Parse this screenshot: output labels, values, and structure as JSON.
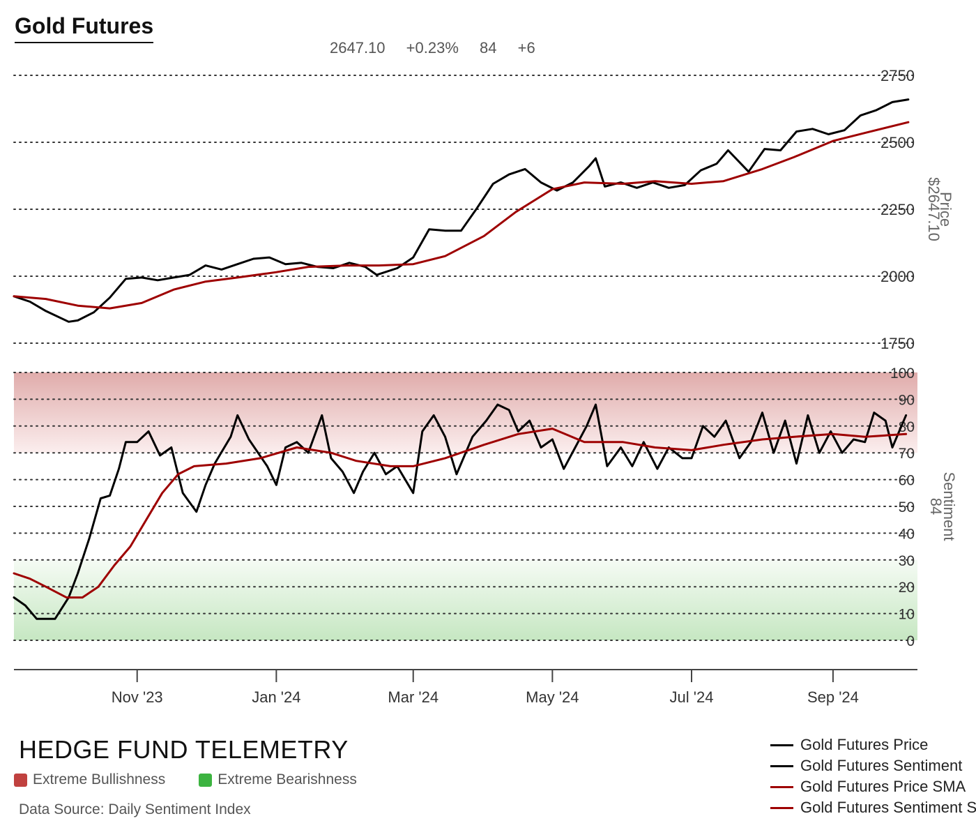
{
  "title": "Gold Futures",
  "stats": {
    "price": "2647.10",
    "change": "+0.23%",
    "sentiment": "84",
    "sentiment_change": "+6"
  },
  "brand": "HEDGE FUND TELEMETRY",
  "zones": [
    {
      "label": "Extreme Bullishness",
      "color": "#c0413f"
    },
    {
      "label": "Extreme Bearishness",
      "color": "#3cb340"
    }
  ],
  "source": "Data Source: Daily Sentiment Index",
  "legend": [
    {
      "label": "Gold Futures Price",
      "color": "#000000"
    },
    {
      "label": "Gold Futures Sentiment",
      "color": "#000000"
    },
    {
      "label": "Gold Futures Price SMA",
      "color": "#9e0000"
    },
    {
      "label": "Gold Futures Sentiment SMA",
      "color": "#9e0000"
    }
  ],
  "colors": {
    "line": "#000000",
    "sma": "#9e0000",
    "grid": "#333333"
  },
  "chart_data": [
    {
      "type": "line",
      "ylabel": "Price",
      "ylabel_value": "$2647.10",
      "ylim": [
        1750,
        2750
      ],
      "yticks": [
        1750,
        2000,
        2250,
        2500,
        2750
      ],
      "xlim": [
        "2023-09-08",
        "2024-10-08"
      ],
      "x_ticks": [
        {
          "date": "2023-11-01",
          "label": "Nov '23"
        },
        {
          "date": "2024-01-01",
          "label": "Jan '24"
        },
        {
          "date": "2024-03-01",
          "label": "Mar '24"
        },
        {
          "date": "2024-05-01",
          "label": "May '24"
        },
        {
          "date": "2024-07-01",
          "label": "Jul '24"
        },
        {
          "date": "2024-09-01",
          "label": "Sep '24"
        }
      ],
      "grid": true,
      "series": [
        {
          "name": "Gold Futures Price",
          "points": [
            [
              "2023-09-08",
              1925
            ],
            [
              "2023-09-15",
              1905
            ],
            [
              "2023-09-22",
              1870
            ],
            [
              "2023-10-02",
              1830
            ],
            [
              "2023-10-06",
              1835
            ],
            [
              "2023-10-13",
              1865
            ],
            [
              "2023-10-20",
              1920
            ],
            [
              "2023-10-27",
              1990
            ],
            [
              "2023-11-03",
              1995
            ],
            [
              "2023-11-10",
              1985
            ],
            [
              "2023-11-17",
              1995
            ],
            [
              "2023-11-24",
              2005
            ],
            [
              "2023-12-01",
              2040
            ],
            [
              "2023-12-08",
              2025
            ],
            [
              "2023-12-15",
              2045
            ],
            [
              "2023-12-22",
              2065
            ],
            [
              "2023-12-29",
              2070
            ],
            [
              "2024-01-05",
              2045
            ],
            [
              "2024-01-12",
              2050
            ],
            [
              "2024-01-19",
              2035
            ],
            [
              "2024-01-26",
              2030
            ],
            [
              "2024-02-02",
              2050
            ],
            [
              "2024-02-09",
              2035
            ],
            [
              "2024-02-14",
              2005
            ],
            [
              "2024-02-23",
              2030
            ],
            [
              "2024-03-01",
              2070
            ],
            [
              "2024-03-08",
              2175
            ],
            [
              "2024-03-15",
              2170
            ],
            [
              "2024-03-22",
              2170
            ],
            [
              "2024-03-29",
              2255
            ],
            [
              "2024-04-05",
              2345
            ],
            [
              "2024-04-12",
              2380
            ],
            [
              "2024-04-19",
              2400
            ],
            [
              "2024-04-26",
              2350
            ],
            [
              "2024-05-03",
              2320
            ],
            [
              "2024-05-10",
              2350
            ],
            [
              "2024-05-17",
              2410
            ],
            [
              "2024-05-20",
              2440
            ],
            [
              "2024-05-24",
              2335
            ],
            [
              "2024-05-31",
              2350
            ],
            [
              "2024-06-07",
              2330
            ],
            [
              "2024-06-14",
              2350
            ],
            [
              "2024-06-21",
              2330
            ],
            [
              "2024-06-28",
              2340
            ],
            [
              "2024-07-05",
              2395
            ],
            [
              "2024-07-12",
              2420
            ],
            [
              "2024-07-17",
              2470
            ],
            [
              "2024-07-26",
              2390
            ],
            [
              "2024-08-02",
              2475
            ],
            [
              "2024-08-09",
              2470
            ],
            [
              "2024-08-16",
              2540
            ],
            [
              "2024-08-23",
              2550
            ],
            [
              "2024-08-30",
              2530
            ],
            [
              "2024-09-06",
              2545
            ],
            [
              "2024-09-13",
              2600
            ],
            [
              "2024-09-20",
              2620
            ],
            [
              "2024-09-27",
              2650
            ],
            [
              "2024-10-04",
              2660
            ]
          ]
        },
        {
          "name": "Gold Futures Price SMA",
          "points": [
            [
              "2023-09-08",
              1925
            ],
            [
              "2023-09-22",
              1915
            ],
            [
              "2023-10-06",
              1890
            ],
            [
              "2023-10-20",
              1880
            ],
            [
              "2023-11-03",
              1900
            ],
            [
              "2023-11-17",
              1950
            ],
            [
              "2023-12-01",
              1980
            ],
            [
              "2023-12-15",
              1995
            ],
            [
              "2024-01-01",
              2015
            ],
            [
              "2024-01-15",
              2035
            ],
            [
              "2024-02-01",
              2040
            ],
            [
              "2024-02-15",
              2040
            ],
            [
              "2024-03-01",
              2045
            ],
            [
              "2024-03-15",
              2075
            ],
            [
              "2024-04-01",
              2150
            ],
            [
              "2024-04-15",
              2240
            ],
            [
              "2024-05-01",
              2325
            ],
            [
              "2024-05-15",
              2350
            ],
            [
              "2024-06-01",
              2345
            ],
            [
              "2024-06-15",
              2355
            ],
            [
              "2024-07-01",
              2345
            ],
            [
              "2024-07-15",
              2355
            ],
            [
              "2024-08-01",
              2400
            ],
            [
              "2024-08-15",
              2445
            ],
            [
              "2024-09-01",
              2505
            ],
            [
              "2024-09-15",
              2535
            ],
            [
              "2024-10-04",
              2575
            ]
          ]
        }
      ]
    },
    {
      "type": "line",
      "ylabel": "Sentiment",
      "ylabel_value": "84",
      "ylim": [
        0,
        100
      ],
      "yticks": [
        0,
        10,
        20,
        30,
        40,
        50,
        60,
        70,
        80,
        90,
        100
      ],
      "xlim": [
        "2023-09-08",
        "2024-10-08"
      ],
      "grid": true,
      "bands": [
        {
          "from": 70,
          "to": 100,
          "zone": "Extreme Bullishness"
        },
        {
          "from": 0,
          "to": 30,
          "zone": "Extreme Bearishness"
        }
      ],
      "series": [
        {
          "name": "Gold Futures Sentiment",
          "points": [
            [
              "2023-09-08",
              16
            ],
            [
              "2023-09-13",
              13
            ],
            [
              "2023-09-18",
              8
            ],
            [
              "2023-09-26",
              8
            ],
            [
              "2023-10-02",
              16
            ],
            [
              "2023-10-06",
              25
            ],
            [
              "2023-10-11",
              38
            ],
            [
              "2023-10-16",
              53
            ],
            [
              "2023-10-20",
              54
            ],
            [
              "2023-10-24",
              64
            ],
            [
              "2023-10-27",
              74
            ],
            [
              "2023-11-01",
              74
            ],
            [
              "2023-11-06",
              78
            ],
            [
              "2023-11-11",
              69
            ],
            [
              "2023-11-16",
              72
            ],
            [
              "2023-11-21",
              55
            ],
            [
              "2023-11-27",
              48
            ],
            [
              "2023-12-01",
              58
            ],
            [
              "2023-12-05",
              66
            ],
            [
              "2023-12-12",
              76
            ],
            [
              "2023-12-15",
              84
            ],
            [
              "2023-12-20",
              75
            ],
            [
              "2023-12-28",
              65
            ],
            [
              "2024-01-01",
              58
            ],
            [
              "2024-01-05",
              72
            ],
            [
              "2024-01-10",
              74
            ],
            [
              "2024-01-15",
              70
            ],
            [
              "2024-01-21",
              84
            ],
            [
              "2024-01-25",
              68
            ],
            [
              "2024-01-30",
              63
            ],
            [
              "2024-02-04",
              55
            ],
            [
              "2024-02-08",
              63
            ],
            [
              "2024-02-13",
              70
            ],
            [
              "2024-02-18",
              62
            ],
            [
              "2024-02-23",
              65
            ],
            [
              "2024-03-01",
              55
            ],
            [
              "2024-03-05",
              78
            ],
            [
              "2024-03-10",
              84
            ],
            [
              "2024-03-15",
              76
            ],
            [
              "2024-03-20",
              62
            ],
            [
              "2024-03-27",
              76
            ],
            [
              "2024-04-02",
              82
            ],
            [
              "2024-04-07",
              88
            ],
            [
              "2024-04-12",
              86
            ],
            [
              "2024-04-16",
              78
            ],
            [
              "2024-04-21",
              82
            ],
            [
              "2024-04-26",
              72
            ],
            [
              "2024-05-01",
              75
            ],
            [
              "2024-05-06",
              64
            ],
            [
              "2024-05-11",
              72
            ],
            [
              "2024-05-16",
              80
            ],
            [
              "2024-05-20",
              88
            ],
            [
              "2024-05-25",
              65
            ],
            [
              "2024-05-31",
              72
            ],
            [
              "2024-06-05",
              65
            ],
            [
              "2024-06-10",
              74
            ],
            [
              "2024-06-16",
              64
            ],
            [
              "2024-06-21",
              72
            ],
            [
              "2024-06-27",
              68
            ],
            [
              "2024-07-01",
              68
            ],
            [
              "2024-07-06",
              80
            ],
            [
              "2024-07-11",
              76
            ],
            [
              "2024-07-16",
              82
            ],
            [
              "2024-07-22",
              68
            ],
            [
              "2024-07-27",
              74
            ],
            [
              "2024-08-01",
              85
            ],
            [
              "2024-08-06",
              70
            ],
            [
              "2024-08-11",
              82
            ],
            [
              "2024-08-16",
              66
            ],
            [
              "2024-08-21",
              84
            ],
            [
              "2024-08-26",
              70
            ],
            [
              "2024-08-31",
              78
            ],
            [
              "2024-09-05",
              70
            ],
            [
              "2024-09-10",
              75
            ],
            [
              "2024-09-15",
              74
            ],
            [
              "2024-09-19",
              85
            ],
            [
              "2024-09-24",
              82
            ],
            [
              "2024-09-27",
              72
            ],
            [
              "2024-10-03",
              84
            ]
          ]
        },
        {
          "name": "Gold Futures Sentiment SMA",
          "points": [
            [
              "2023-09-08",
              25
            ],
            [
              "2023-09-15",
              23
            ],
            [
              "2023-09-22",
              20
            ],
            [
              "2023-10-01",
              16
            ],
            [
              "2023-10-08",
              16
            ],
            [
              "2023-10-15",
              20
            ],
            [
              "2023-10-22",
              28
            ],
            [
              "2023-10-29",
              35
            ],
            [
              "2023-11-05",
              45
            ],
            [
              "2023-11-12",
              55
            ],
            [
              "2023-11-19",
              62
            ],
            [
              "2023-11-26",
              65
            ],
            [
              "2023-12-10",
              66
            ],
            [
              "2023-12-25",
              68
            ],
            [
              "2024-01-10",
              72
            ],
            [
              "2024-01-25",
              70
            ],
            [
              "2024-02-05",
              67
            ],
            [
              "2024-02-20",
              65
            ],
            [
              "2024-03-01",
              65
            ],
            [
              "2024-03-15",
              68
            ],
            [
              "2024-04-01",
              73
            ],
            [
              "2024-04-16",
              77
            ],
            [
              "2024-05-01",
              79
            ],
            [
              "2024-05-15",
              74
            ],
            [
              "2024-06-01",
              74
            ],
            [
              "2024-06-15",
              72
            ],
            [
              "2024-07-01",
              71
            ],
            [
              "2024-07-15",
              73
            ],
            [
              "2024-08-01",
              75
            ],
            [
              "2024-08-15",
              76
            ],
            [
              "2024-09-01",
              77
            ],
            [
              "2024-09-15",
              76
            ],
            [
              "2024-10-03",
              77
            ]
          ]
        }
      ]
    }
  ]
}
